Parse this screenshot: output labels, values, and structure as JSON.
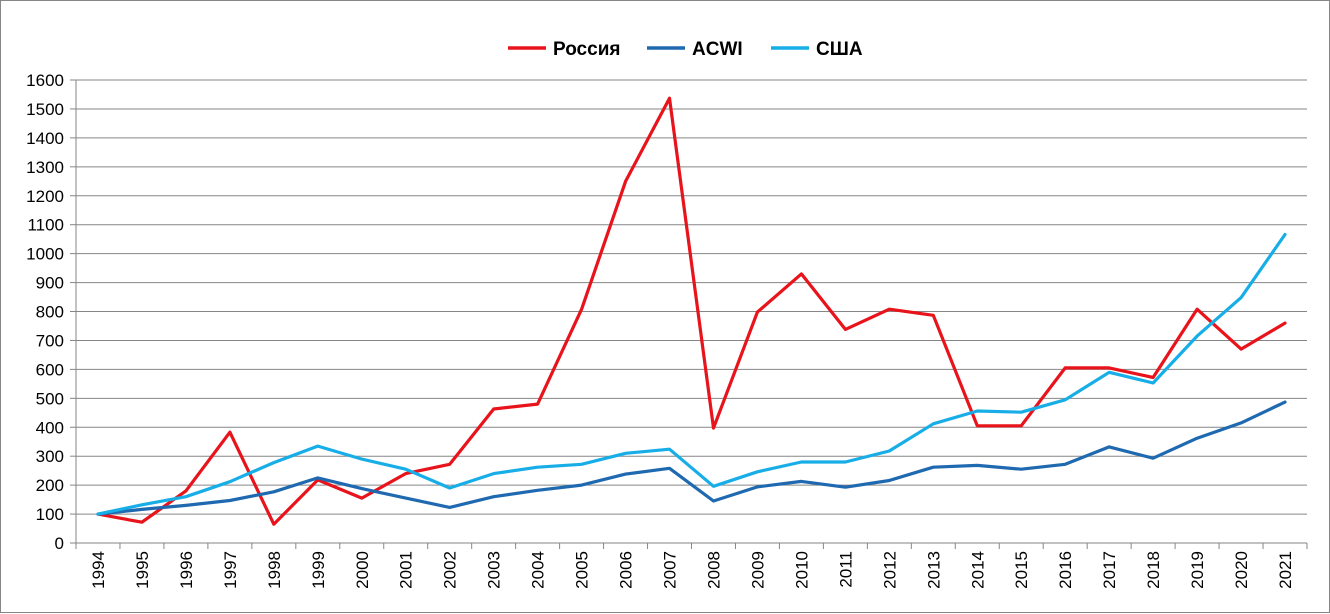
{
  "chart_data": {
    "type": "line",
    "title": "",
    "xlabel": "",
    "ylabel": "",
    "categories": [
      "1994",
      "1995",
      "1996",
      "1997",
      "1998",
      "1999",
      "2000",
      "2001",
      "2002",
      "2003",
      "2004",
      "2005",
      "2006",
      "2007",
      "2008",
      "2009",
      "2010",
      "2011",
      "2012",
      "2013",
      "2014",
      "2015",
      "2016",
      "2017",
      "2018",
      "2019",
      "2020",
      "2021"
    ],
    "ylim": [
      0,
      1600
    ],
    "yticks": [
      0,
      100,
      200,
      300,
      400,
      500,
      600,
      700,
      800,
      900,
      1000,
      1100,
      1200,
      1300,
      1400,
      1500,
      1600
    ],
    "grid": true,
    "legend_position": "top",
    "series": [
      {
        "name": "Россия",
        "color": "#e8131b",
        "values": [
          100,
          72,
          180,
          383,
          65,
          218,
          155,
          240,
          272,
          463,
          480,
          808,
          1250,
          1537,
          397,
          798,
          930,
          738,
          808,
          787,
          405,
          405,
          605,
          605,
          572,
          808,
          670,
          760
        ]
      },
      {
        "name": "ACWI",
        "color": "#1f69b0",
        "values": [
          100,
          116,
          130,
          147,
          177,
          225,
          188,
          155,
          123,
          160,
          182,
          200,
          238,
          258,
          145,
          194,
          213,
          193,
          216,
          262,
          268,
          255,
          272,
          332,
          293,
          362,
          415,
          487
        ]
      },
      {
        "name": "США",
        "color": "#17aee8",
        "values": [
          100,
          132,
          160,
          212,
          278,
          335,
          290,
          255,
          190,
          240,
          262,
          272,
          310,
          324,
          196,
          246,
          280,
          280,
          318,
          412,
          456,
          452,
          495,
          590,
          553,
          715,
          848,
          1066
        ]
      }
    ]
  }
}
